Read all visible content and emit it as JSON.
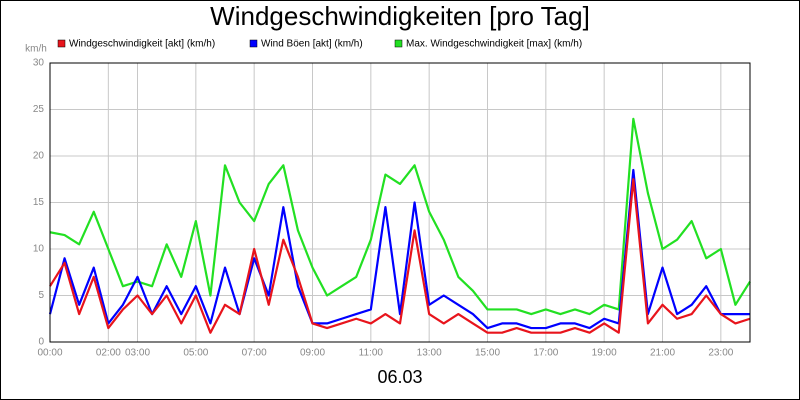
{
  "chart_data": {
    "type": "line",
    "title": "Windgeschwindigkeiten [pro Tag]",
    "y_label": "km/h",
    "x_label": "06.03",
    "x": [
      0,
      0.5,
      1,
      1.5,
      2,
      2.5,
      3,
      3.5,
      4,
      4.5,
      5,
      5.5,
      6,
      6.5,
      7,
      7.5,
      8,
      8.5,
      9,
      9.5,
      10,
      10.5,
      11,
      11.5,
      12,
      12.5,
      13,
      13.5,
      14,
      14.5,
      15,
      15.5,
      16,
      16.5,
      17,
      17.5,
      18,
      18.5,
      19,
      19.5,
      20,
      20.5,
      21,
      21.5,
      22,
      22.5,
      23,
      23.5,
      24
    ],
    "series": [
      {
        "name": "Windgeschwindigkeit [akt] (km/h)",
        "color": "#e8141c",
        "values": [
          6,
          8.5,
          3,
          7,
          1.5,
          3.5,
          5,
          3,
          5,
          2,
          5,
          1,
          4,
          3,
          10,
          4,
          11,
          7,
          2,
          1.5,
          2,
          2.5,
          2,
          3,
          2,
          12,
          3,
          2,
          3,
          2,
          1,
          1,
          1.5,
          1,
          1,
          1,
          1.5,
          1,
          2,
          1,
          17.5,
          2,
          4,
          2.5,
          3,
          5,
          3,
          2,
          2.5
        ]
      },
      {
        "name": "Wind Böen [akt] (km/h)",
        "color": "#0000ff",
        "values": [
          3,
          9,
          4,
          8,
          2,
          4,
          7,
          3,
          6,
          3,
          6,
          2,
          8,
          3,
          9,
          5,
          14.5,
          6,
          2,
          2,
          2.5,
          3,
          3.5,
          14.5,
          3,
          15,
          4,
          5,
          4,
          3,
          1.5,
          2,
          2,
          1.5,
          1.5,
          2,
          2,
          1.5,
          2.5,
          2,
          18.5,
          3,
          8,
          3,
          4,
          6,
          3,
          3,
          3
        ]
      },
      {
        "name": "Max. Windgeschwindigkeit [max] (km/h)",
        "color": "#22e022",
        "values": [
          11.8,
          11.5,
          10.5,
          14,
          10,
          6,
          6.5,
          6,
          10.5,
          7,
          13,
          5,
          19,
          15,
          13,
          17,
          19,
          12,
          8,
          5,
          6,
          7,
          11,
          18,
          17,
          19,
          14,
          11,
          7,
          5.5,
          3.5,
          3.5,
          3.5,
          3,
          3.5,
          3,
          3.5,
          3,
          4,
          3.5,
          24,
          16,
          10,
          11,
          13,
          9,
          10,
          4,
          6.5
        ]
      }
    ],
    "xlim": [
      0,
      24
    ],
    "xticks": [
      {
        "value": 0,
        "label": "00:00"
      },
      {
        "value": 2,
        "label": "02:00"
      },
      {
        "value": 3,
        "label": "03:00"
      },
      {
        "value": 5,
        "label": "05:00"
      },
      {
        "value": 7,
        "label": "07:00"
      },
      {
        "value": 9,
        "label": "09:00"
      },
      {
        "value": 11,
        "label": "11:00"
      },
      {
        "value": 13,
        "label": "13:00"
      },
      {
        "value": 15,
        "label": "15:00"
      },
      {
        "value": 17,
        "label": "17:00"
      },
      {
        "value": 19,
        "label": "19:00"
      },
      {
        "value": 21,
        "label": "21:00"
      },
      {
        "value": 23,
        "label": "23:00"
      }
    ],
    "ylim": [
      0,
      30
    ],
    "yticks": [
      0,
      5,
      10,
      15,
      20,
      25,
      30
    ],
    "grid": true
  }
}
